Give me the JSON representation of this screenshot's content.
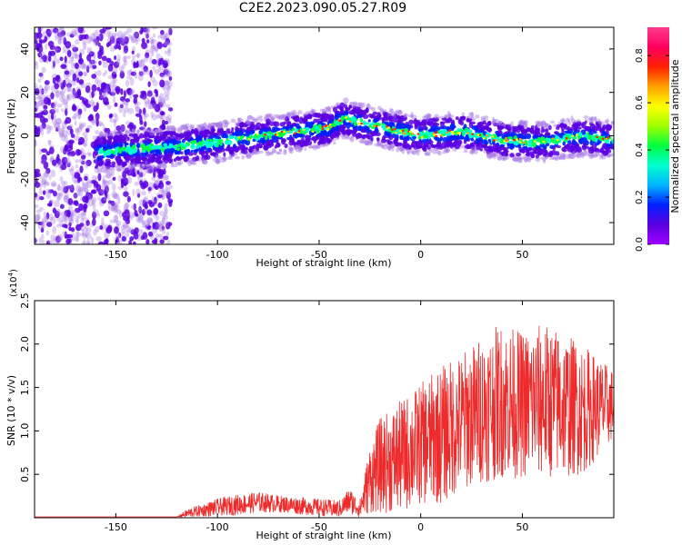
{
  "title": "C2E2.2023.090.05.27.R09",
  "colors": {
    "spectrogram_low": "#a678e6",
    "spectrogram_band": "#5a00e0",
    "snr_line": "#ee2a2a",
    "colorbar": [
      "#9e00ff",
      "#5a00e0",
      "#0020ff",
      "#00b4ff",
      "#00ffd0",
      "#00ff40",
      "#a0ff00",
      "#ffff00",
      "#ffa000",
      "#ff2000",
      "#ff0060",
      "#ff3c8c"
    ]
  },
  "chart_data": [
    {
      "type": "heatmap",
      "xlabel": "Height of straight line (km)",
      "ylabel": "Frequency (Hz)",
      "xlim": [
        -190,
        95
      ],
      "ylim": [
        -50,
        50
      ],
      "xticks": [
        -150,
        -100,
        -50,
        0,
        50
      ],
      "yticks": [
        -40,
        -20,
        0,
        20,
        40
      ],
      "grid": false,
      "colorbar": {
        "label": "Normalized spectral amplitude",
        "range": [
          0.0,
          0.92
        ],
        "ticks": [
          "0.0",
          "0.2",
          "0.4",
          "0.6",
          "0.8"
        ]
      },
      "ridge": {
        "x": [
          -160,
          -140,
          -120,
          -100,
          -80,
          -60,
          -45,
          -38,
          -20,
          0,
          20,
          40,
          60,
          80,
          95
        ],
        "y": [
          -8,
          -6,
          -5,
          -3,
          0,
          2,
          4,
          8,
          4,
          0,
          2,
          -2,
          -3,
          0,
          -2
        ]
      }
    },
    {
      "type": "line",
      "xlabel": "Height of straight line (km)",
      "ylabel": "SNR (10 * v/v)",
      "scale_note": "(x10",
      "scale_exp": "4",
      "scale_close": ")",
      "xlim": [
        -190,
        95
      ],
      "ylim": [
        0,
        2.5
      ],
      "xticks": [
        -150,
        -100,
        -50,
        0,
        50
      ],
      "yticks": [
        "0.5",
        "1.0",
        "1.5",
        "2.0",
        "2.5"
      ],
      "grid": false,
      "envelope": {
        "x": [
          -190,
          -120,
          -115,
          -100,
          -90,
          -80,
          -70,
          -60,
          -50,
          -40,
          -35,
          -30,
          -25,
          -20,
          -10,
          0,
          10,
          20,
          30,
          40,
          50,
          60,
          70,
          80,
          95
        ],
        "mean": [
          0.01,
          0.01,
          0.05,
          0.12,
          0.15,
          0.18,
          0.16,
          0.14,
          0.12,
          0.1,
          0.2,
          0.1,
          0.45,
          0.6,
          0.7,
          0.85,
          0.95,
          1.1,
          1.25,
          1.35,
          1.3,
          1.35,
          1.3,
          1.25,
          1.3
        ],
        "amplitude": [
          0.0,
          0.0,
          0.05,
          0.1,
          0.12,
          0.12,
          0.1,
          0.1,
          0.1,
          0.1,
          0.15,
          0.1,
          0.4,
          0.55,
          0.65,
          0.7,
          0.8,
          0.8,
          0.85,
          0.9,
          0.85,
          0.9,
          0.85,
          0.75,
          0.4
        ]
      }
    }
  ]
}
